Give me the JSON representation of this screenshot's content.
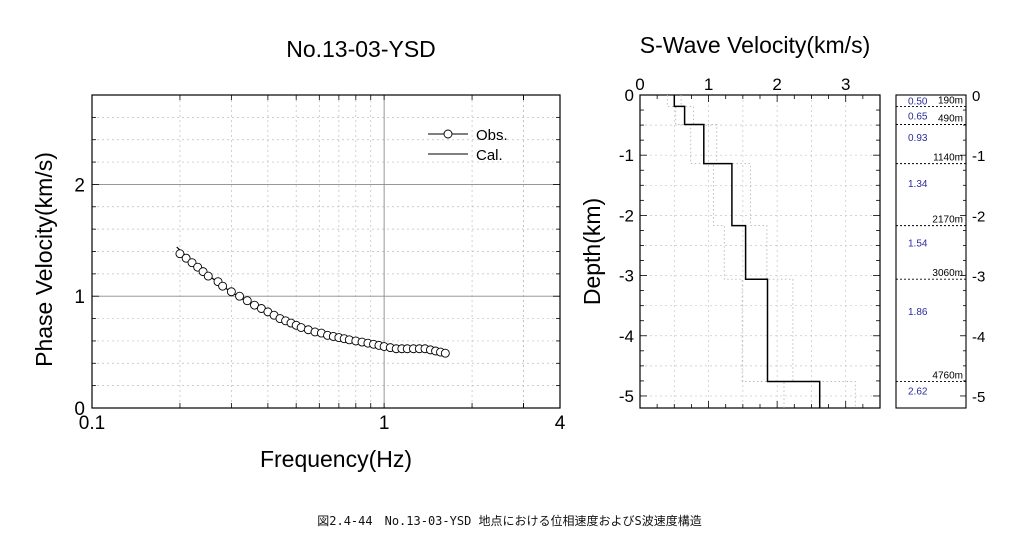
{
  "caption": "図2.4-44　No.13-03-YSD 地点における位相速度およびS波速度構造",
  "chart_data": [
    {
      "type": "scatter",
      "title": "No.13-03-YSD",
      "xlabel": "Frequency(Hz)",
      "ylabel": "Phase Velocity(km/s)",
      "xscale": "log",
      "xlim": [
        0.1,
        4
      ],
      "ylim": [
        0,
        2.8
      ],
      "xticks": [
        0.1,
        1,
        4
      ],
      "xtick_labels": [
        "0.1",
        "1",
        "4"
      ],
      "yticks": [
        0,
        1,
        2
      ],
      "ytick_labels": [
        "0",
        "1",
        "2"
      ],
      "grid": true,
      "legend": "top-right",
      "series": [
        {
          "name": "Obs.",
          "marker": "circle",
          "x": [
            0.2,
            0.21,
            0.22,
            0.23,
            0.24,
            0.25,
            0.27,
            0.28,
            0.3,
            0.32,
            0.34,
            0.36,
            0.38,
            0.4,
            0.42,
            0.44,
            0.46,
            0.48,
            0.5,
            0.52,
            0.55,
            0.58,
            0.61,
            0.64,
            0.67,
            0.7,
            0.73,
            0.76,
            0.8,
            0.84,
            0.88,
            0.92,
            0.96,
            1.0,
            1.05,
            1.1,
            1.15,
            1.2,
            1.26,
            1.32,
            1.38,
            1.44,
            1.5,
            1.56,
            1.62
          ],
          "y": [
            1.38,
            1.34,
            1.3,
            1.26,
            1.22,
            1.18,
            1.13,
            1.09,
            1.04,
            1.0,
            0.96,
            0.92,
            0.89,
            0.86,
            0.83,
            0.8,
            0.78,
            0.76,
            0.74,
            0.72,
            0.7,
            0.68,
            0.67,
            0.65,
            0.64,
            0.63,
            0.62,
            0.61,
            0.6,
            0.59,
            0.58,
            0.57,
            0.56,
            0.55,
            0.54,
            0.53,
            0.53,
            0.53,
            0.53,
            0.53,
            0.53,
            0.52,
            0.51,
            0.5,
            0.49
          ]
        },
        {
          "name": "Cal.",
          "marker": "none",
          "x": [
            0.195,
            0.22,
            0.25,
            0.28,
            0.32,
            0.36,
            0.4,
            0.45,
            0.5,
            0.56,
            0.63,
            0.7,
            0.8,
            0.9,
            1.0,
            1.1,
            1.2,
            1.3,
            1.4,
            1.5,
            1.63
          ],
          "y": [
            1.44,
            1.31,
            1.19,
            1.09,
            0.99,
            0.91,
            0.85,
            0.79,
            0.74,
            0.7,
            0.66,
            0.63,
            0.6,
            0.57,
            0.55,
            0.53,
            0.52,
            0.52,
            0.51,
            0.5,
            0.49
          ]
        }
      ]
    },
    {
      "type": "line",
      "title": "S-Wave Velocity(km/s)",
      "ylabel": "Depth(km)",
      "xlim": [
        0,
        3.5
      ],
      "ylim": [
        -5.2,
        0
      ],
      "xticks": [
        0,
        1,
        2,
        3
      ],
      "xtick_labels": [
        "0",
        "1",
        "2",
        "3"
      ],
      "yticks": [
        0,
        -1,
        -2,
        -3,
        -4,
        -5
      ],
      "ytick_labels": [
        "0",
        "-1",
        "-2",
        "-3",
        "-4",
        "-5"
      ],
      "grid": true,
      "model": {
        "x": [
          0.5,
          0.5,
          0.65,
          0.65,
          0.93,
          0.93,
          1.34,
          1.34,
          1.54,
          1.54,
          1.86,
          1.86,
          2.62,
          2.62
        ],
        "y": [
          0,
          -0.19,
          -0.19,
          -0.49,
          -0.49,
          -1.14,
          -1.14,
          -2.17,
          -2.17,
          -3.06,
          -3.06,
          -4.76,
          -4.76,
          -5.2
        ]
      },
      "lower_bound": {
        "x": [
          0.4,
          0.4,
          0.52,
          0.52,
          0.74,
          0.74,
          1.07,
          1.07,
          1.23,
          1.23,
          1.49,
          1.49,
          2.1,
          2.1
        ],
        "y": [
          0,
          -0.19,
          -0.19,
          -0.49,
          -0.49,
          -1.14,
          -1.14,
          -2.17,
          -2.17,
          -3.06,
          -3.06,
          -4.76,
          -4.76,
          -5.2
        ]
      },
      "upper_bound": {
        "x": [
          0.6,
          0.6,
          0.78,
          0.78,
          1.12,
          1.12,
          1.61,
          1.61,
          1.85,
          1.85,
          2.23,
          2.23,
          3.14,
          3.14
        ],
        "y": [
          0,
          -0.19,
          -0.19,
          -0.49,
          -0.49,
          -1.14,
          -1.14,
          -2.17,
          -2.17,
          -3.06,
          -3.06,
          -4.76,
          -4.76,
          -5.2
        ]
      }
    },
    {
      "type": "table",
      "ylim": [
        -5.2,
        0
      ],
      "yticks": [
        0,
        -1,
        -2,
        -3,
        -4,
        -5
      ],
      "ytick_labels": [
        "0",
        "-1",
        "-2",
        "-3",
        "-4",
        "-5"
      ],
      "velocity_color": "#2a2aa0",
      "layers": [
        {
          "vs": "0.50",
          "top_km": 0,
          "bottom_km": -0.19,
          "depth_label": "190m"
        },
        {
          "vs": "0.65",
          "top_km": -0.19,
          "bottom_km": -0.49,
          "depth_label": "490m"
        },
        {
          "vs": "0.93",
          "top_km": -0.49,
          "bottom_km": -1.14,
          "depth_label": "1140m"
        },
        {
          "vs": "1.34",
          "top_km": -1.14,
          "bottom_km": -2.17,
          "depth_label": "2170m"
        },
        {
          "vs": "1.54",
          "top_km": -2.17,
          "bottom_km": -3.06,
          "depth_label": "3060m"
        },
        {
          "vs": "1.86",
          "top_km": -3.06,
          "bottom_km": -4.76,
          "depth_label": "4760m"
        },
        {
          "vs": "2.62",
          "top_km": -4.76,
          "bottom_km": -5.2,
          "depth_label": ""
        }
      ]
    }
  ]
}
